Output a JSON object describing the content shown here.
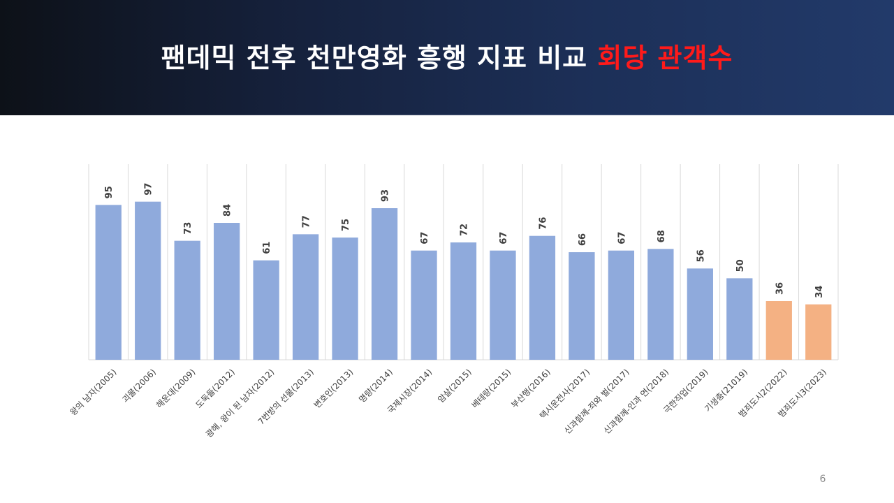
{
  "header": {
    "title_main": "팬데믹 전후 천만영화 흥행 지표 비교",
    "title_accent": "회당 관객수",
    "accent_color": "#ff1a1a"
  },
  "page_number": "6",
  "chart_data": {
    "type": "bar",
    "title": "",
    "xlabel": "",
    "ylabel": "",
    "ylim": [
      0,
      120
    ],
    "grid": "vertical",
    "legend": "none",
    "categories": [
      "왕의 남자(2005)",
      "괴물(2006)",
      "해운대(2009)",
      "도둑들(2012)",
      "광해, 왕이 된 남자(2012)",
      "7번방의 선물(2013)",
      "변호인(2013)",
      "명량(2014)",
      "국제시장(2014)",
      "암살(2015)",
      "베테랑(2015)",
      "부산행(2016)",
      "택시운전사(2017)",
      "신과함께-죄와 벌(2017)",
      "신과함께-인과 연(2018)",
      "극한직업(2019)",
      "기생충(21019)",
      "범죄도시2(2022)",
      "범죄도시3(2023)"
    ],
    "series": [
      {
        "values": [
          95,
          97,
          73,
          84,
          61,
          77,
          75,
          93,
          67,
          72,
          67,
          76,
          66,
          67,
          68,
          56,
          50,
          36,
          34
        ],
        "colors": [
          "#8faadc",
          "#8faadc",
          "#8faadc",
          "#8faadc",
          "#8faadc",
          "#8faadc",
          "#8faadc",
          "#8faadc",
          "#8faadc",
          "#8faadc",
          "#8faadc",
          "#8faadc",
          "#8faadc",
          "#8faadc",
          "#8faadc",
          "#8faadc",
          "#8faadc",
          "#f4b183",
          "#f4b183"
        ]
      }
    ],
    "data_labels": true
  }
}
